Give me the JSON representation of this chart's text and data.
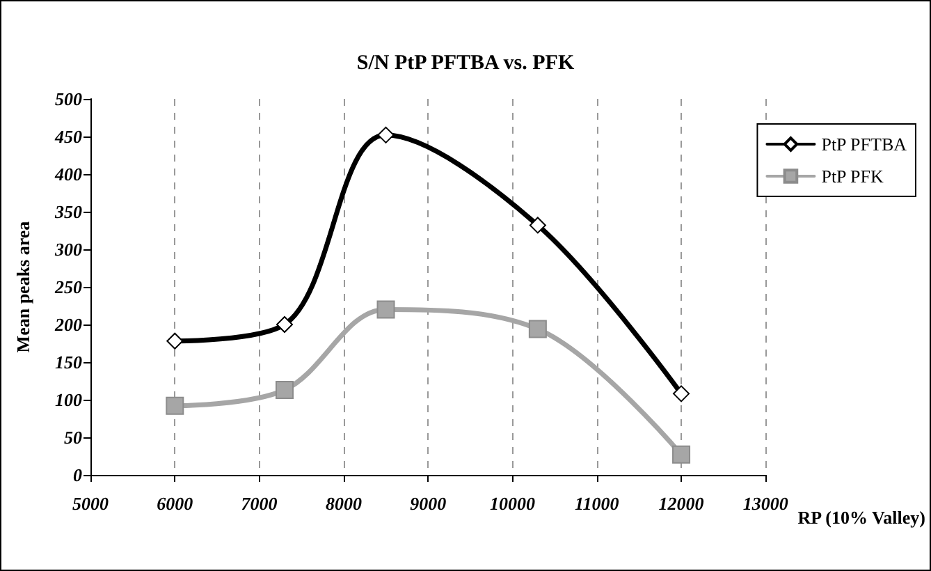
{
  "chart_data": {
    "type": "line",
    "title": "S/N PtP PFTBA vs. PFK",
    "xlabel": "RP (10% Valley)",
    "ylabel": "Mean peaks area",
    "x": [
      6000,
      7300,
      8500,
      10300,
      12000
    ],
    "series": [
      {
        "name": "PtP PFTBA",
        "color": "#000000",
        "marker": "diamond",
        "values": [
          178,
          200,
          452,
          332,
          108
        ]
      },
      {
        "name": "PtP PFK",
        "color": "#a6a6a6",
        "marker": "square",
        "values": [
          92,
          113,
          220,
          194,
          27
        ]
      }
    ],
    "xlim": [
      5000,
      13000
    ],
    "xticks": [
      5000,
      6000,
      7000,
      8000,
      9000,
      10000,
      11000,
      12000,
      13000
    ],
    "ylim": [
      0,
      500
    ],
    "yticks": [
      0,
      50,
      100,
      150,
      200,
      250,
      300,
      350,
      400,
      450,
      500
    ],
    "grid": "x",
    "legend": "top right",
    "line_style": "solid"
  }
}
